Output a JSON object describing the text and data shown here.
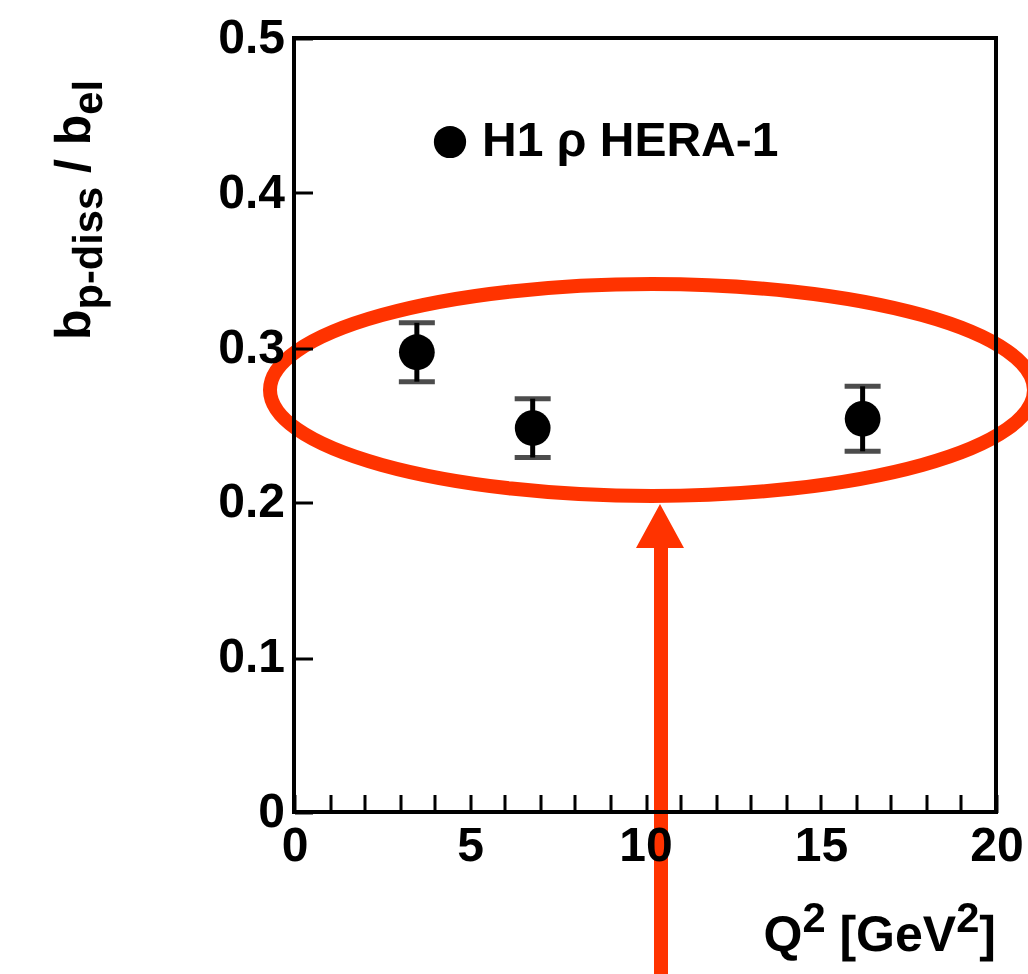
{
  "chart_data": {
    "type": "scatter",
    "xlabel": "Q$^{2}$ [GeV$^{2}$]",
    "ylabel": "b$_{p-diss}$ / b$_{el}$",
    "x": [
      3.5,
      6.8,
      16.2
    ],
    "series": [
      {
        "name": "H1 ρ HERA-1",
        "color": "#000000",
        "values": [
          0.297,
          0.248,
          0.254
        ],
        "errors": [
          0.019,
          0.019,
          0.021
        ]
      }
    ],
    "xlim": [
      0,
      20
    ],
    "ylim": [
      0,
      0.5
    ],
    "xticks": [
      0,
      {
        "value": 1,
        "label": null
      },
      {
        "value": 2,
        "label": null
      },
      {
        "value": 3,
        "label": null
      },
      {
        "value": 4,
        "label": null
      },
      5,
      {
        "value": 6,
        "label": null
      },
      {
        "value": 7,
        "label": null
      },
      {
        "value": 8,
        "label": null
      },
      {
        "value": 9,
        "label": null
      },
      10,
      {
        "value": 11,
        "label": null
      },
      {
        "value": 12,
        "label": null
      },
      {
        "value": 13,
        "label": null
      },
      {
        "value": 14,
        "label": null
      },
      15,
      {
        "value": 16,
        "label": null
      },
      {
        "value": 17,
        "label": null
      },
      {
        "value": 18,
        "label": null
      },
      {
        "value": 19,
        "label": null
      },
      20
    ],
    "yticks": [
      0,
      0.1,
      0.2,
      0.3,
      0.4,
      0.5
    ],
    "marker": "circle",
    "legend": "top",
    "grid": false
  }
}
